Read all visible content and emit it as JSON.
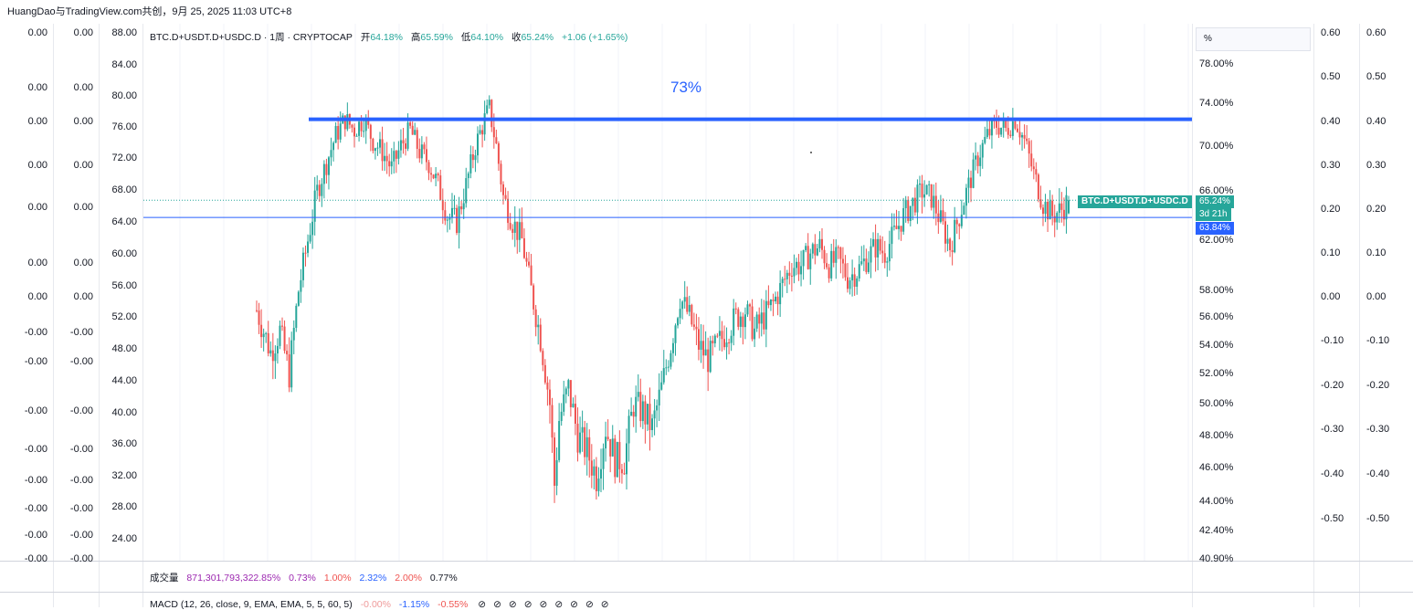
{
  "header": {
    "caption": "HuangDao与TradingView.com共创，9月 25, 2025 11:03 UTC+8"
  },
  "legend": {
    "symbol": "BTC.D+USDT.D+USDC.D · 1周 · CRYPTOCAP",
    "open_label": "开",
    "open": "64.18%",
    "high_label": "高",
    "high": "65.59%",
    "low_label": "低",
    "low": "64.10%",
    "close_label": "收",
    "close": "65.24%",
    "change": "+1.06 (+1.65%)",
    "up_color": "#26a69a",
    "down_color": "#ef5350"
  },
  "annotation": {
    "text": "73%",
    "color": "#2962ff"
  },
  "left_axis_1": [
    "0.00",
    "0.00",
    "0.00",
    "0.00",
    "0.00",
    "0.00",
    "0.00",
    "-0.00",
    "-0.00",
    "-0.00",
    "-0.00",
    "-0.00",
    "-0.00",
    "-0.00",
    "-0.00"
  ],
  "left_axis_2": [
    "0.00",
    "0.00",
    "0.00",
    "0.00",
    "0.00",
    "0.00",
    "0.00",
    "-0.00",
    "-0.00",
    "-0.00",
    "-0.00",
    "-0.00",
    "-0.00",
    "-0.00",
    "-0.00"
  ],
  "left_axis_3": [
    "88.00",
    "84.00",
    "80.00",
    "76.00",
    "72.00",
    "68.00",
    "64.00",
    "60.00",
    "56.00",
    "52.00",
    "48.00",
    "44.00",
    "40.00",
    "36.00",
    "32.00",
    "28.00",
    "24.00"
  ],
  "right_axis_pct": [
    "78.00%",
    "74.00%",
    "70.00%",
    "66.00%",
    "62.00%",
    "58.00%",
    "56.00%",
    "54.00%",
    "52.00%",
    "50.00%",
    "48.00%",
    "46.00%",
    "44.00%",
    "42.40%",
    "40.90%"
  ],
  "right_axis_4": [
    "0.60",
    "0.50",
    "0.40",
    "0.30",
    "0.20",
    "0.10",
    "0.00",
    "-0.10",
    "-0.20",
    "-0.30",
    "-0.40",
    "-0.50"
  ],
  "right_axis_5": [
    "0.60",
    "0.50",
    "0.40",
    "0.30",
    "0.20",
    "0.10",
    "0.00",
    "-0.10",
    "-0.20",
    "-0.30",
    "-0.40",
    "-0.50"
  ],
  "pct_box_label": "%",
  "tags": {
    "symbol": "BTC.D+USDT.D+USDC.D",
    "last": "65.24%",
    "countdown": "3d 21h",
    "hline_value": "63.84%",
    "last_color": "#26a69a",
    "hline_color": "#2962ff"
  },
  "volume_pane": {
    "label": "成交量",
    "v1": "871,301,793,322.85%",
    "v2": "0.73%",
    "v3": "1.00%",
    "v4": "2.32%",
    "v5": "2.00%",
    "v6": "0.77%"
  },
  "macd_pane": {
    "label": "MACD (12, 26, close, 9, EMA, EMA, 5, 5, 60, 5)",
    "v1": "-0.00%",
    "v2": "-1.15%",
    "v3": "-0.55%",
    "icons": [
      "circle-slash-icon",
      "circle-slash-icon",
      "circle-slash-icon",
      "circle-slash-icon",
      "circle-slash-icon",
      "circle-slash-icon",
      "circle-slash-icon",
      "circle-slash-icon",
      "circle-slash-icon"
    ]
  },
  "chart_data": {
    "type": "candlestick",
    "title": "BTC.D+USDT.D+USDC.D · 1周 · CRYPTOCAP",
    "ylabel": "%",
    "y_axis_ticks": [
      "78.00%",
      "74.00%",
      "70.00%",
      "66.00%",
      "62.00%",
      "58.00%",
      "56.00%",
      "54.00%",
      "52.00%",
      "50.00%",
      "48.00%",
      "46.00%",
      "44.00%",
      "42.40%",
      "40.90%"
    ],
    "ylim": [
      40.9,
      80
    ],
    "trend_series": [
      {
        "i": 0,
        "v": 56.5
      },
      {
        "i": 6,
        "v": 53.5
      },
      {
        "i": 10,
        "v": 55
      },
      {
        "i": 14,
        "v": 52
      },
      {
        "i": 18,
        "v": 58
      },
      {
        "i": 22,
        "v": 62
      },
      {
        "i": 26,
        "v": 66
      },
      {
        "i": 30,
        "v": 68.5
      },
      {
        "i": 34,
        "v": 71
      },
      {
        "i": 38,
        "v": 72.5
      },
      {
        "i": 42,
        "v": 71.5
      },
      {
        "i": 46,
        "v": 72.5
      },
      {
        "i": 50,
        "v": 70.5
      },
      {
        "i": 54,
        "v": 69.5
      },
      {
        "i": 58,
        "v": 68
      },
      {
        "i": 62,
        "v": 70
      },
      {
        "i": 66,
        "v": 71.5
      },
      {
        "i": 70,
        "v": 69.5
      },
      {
        "i": 74,
        "v": 68.5
      },
      {
        "i": 78,
        "v": 66.5
      },
      {
        "i": 82,
        "v": 64
      },
      {
        "i": 86,
        "v": 63.5
      },
      {
        "i": 90,
        "v": 66.5
      },
      {
        "i": 94,
        "v": 70
      },
      {
        "i": 98,
        "v": 72.5
      },
      {
        "i": 100,
        "v": 73.5
      },
      {
        "i": 103,
        "v": 70
      },
      {
        "i": 106,
        "v": 65.5
      },
      {
        "i": 110,
        "v": 63.5
      },
      {
        "i": 114,
        "v": 62
      },
      {
        "i": 118,
        "v": 58
      },
      {
        "i": 122,
        "v": 54.5
      },
      {
        "i": 126,
        "v": 50
      },
      {
        "i": 128,
        "v": 45
      },
      {
        "i": 130,
        "v": 49
      },
      {
        "i": 134,
        "v": 51
      },
      {
        "i": 138,
        "v": 48
      },
      {
        "i": 142,
        "v": 47
      },
      {
        "i": 146,
        "v": 45.5
      },
      {
        "i": 150,
        "v": 48.5
      },
      {
        "i": 154,
        "v": 46.5
      },
      {
        "i": 158,
        "v": 46.5
      },
      {
        "i": 162,
        "v": 50
      },
      {
        "i": 166,
        "v": 49.5
      },
      {
        "i": 170,
        "v": 48.5
      },
      {
        "i": 174,
        "v": 51
      },
      {
        "i": 178,
        "v": 54
      },
      {
        "i": 182,
        "v": 57.5
      },
      {
        "i": 186,
        "v": 56
      },
      {
        "i": 190,
        "v": 54
      },
      {
        "i": 194,
        "v": 53
      },
      {
        "i": 198,
        "v": 54
      },
      {
        "i": 202,
        "v": 55
      },
      {
        "i": 206,
        "v": 56
      },
      {
        "i": 210,
        "v": 56.5
      },
      {
        "i": 214,
        "v": 55
      },
      {
        "i": 218,
        "v": 56
      },
      {
        "i": 222,
        "v": 57
      },
      {
        "i": 226,
        "v": 58.5
      },
      {
        "i": 230,
        "v": 60
      },
      {
        "i": 234,
        "v": 60
      },
      {
        "i": 238,
        "v": 61
      },
      {
        "i": 242,
        "v": 61.5
      },
      {
        "i": 246,
        "v": 60
      },
      {
        "i": 250,
        "v": 60.5
      },
      {
        "i": 254,
        "v": 59
      },
      {
        "i": 258,
        "v": 59.5
      },
      {
        "i": 262,
        "v": 60.5
      },
      {
        "i": 266,
        "v": 61.5
      },
      {
        "i": 270,
        "v": 61
      },
      {
        "i": 274,
        "v": 62.5
      },
      {
        "i": 278,
        "v": 64
      },
      {
        "i": 282,
        "v": 65
      },
      {
        "i": 286,
        "v": 66
      },
      {
        "i": 290,
        "v": 65.5
      },
      {
        "i": 294,
        "v": 63.5
      },
      {
        "i": 298,
        "v": 61.5
      },
      {
        "i": 302,
        "v": 64
      },
      {
        "i": 306,
        "v": 66.5
      },
      {
        "i": 310,
        "v": 69
      },
      {
        "i": 314,
        "v": 71
      },
      {
        "i": 318,
        "v": 72
      },
      {
        "i": 322,
        "v": 71.5
      },
      {
        "i": 326,
        "v": 72.5
      },
      {
        "i": 330,
        "v": 70.5
      },
      {
        "i": 334,
        "v": 67.5
      },
      {
        "i": 338,
        "v": 65
      },
      {
        "i": 342,
        "v": 64
      },
      {
        "i": 346,
        "v": 64.5
      },
      {
        "i": 349,
        "v": 65.24
      }
    ],
    "horizontal_lines": [
      {
        "value": 72.5,
        "label": "73%",
        "color": "#2962ff",
        "style": "thick"
      },
      {
        "value": 63.84,
        "color": "#2962ff",
        "style": "thin"
      },
      {
        "value": 65.24,
        "color": "#26a69a",
        "style": "dotted"
      }
    ],
    "last": {
      "open": 64.18,
      "high": 65.59,
      "low": 64.1,
      "close": 65.24,
      "change": 1.06,
      "change_pct": 1.65
    },
    "grid": true
  }
}
